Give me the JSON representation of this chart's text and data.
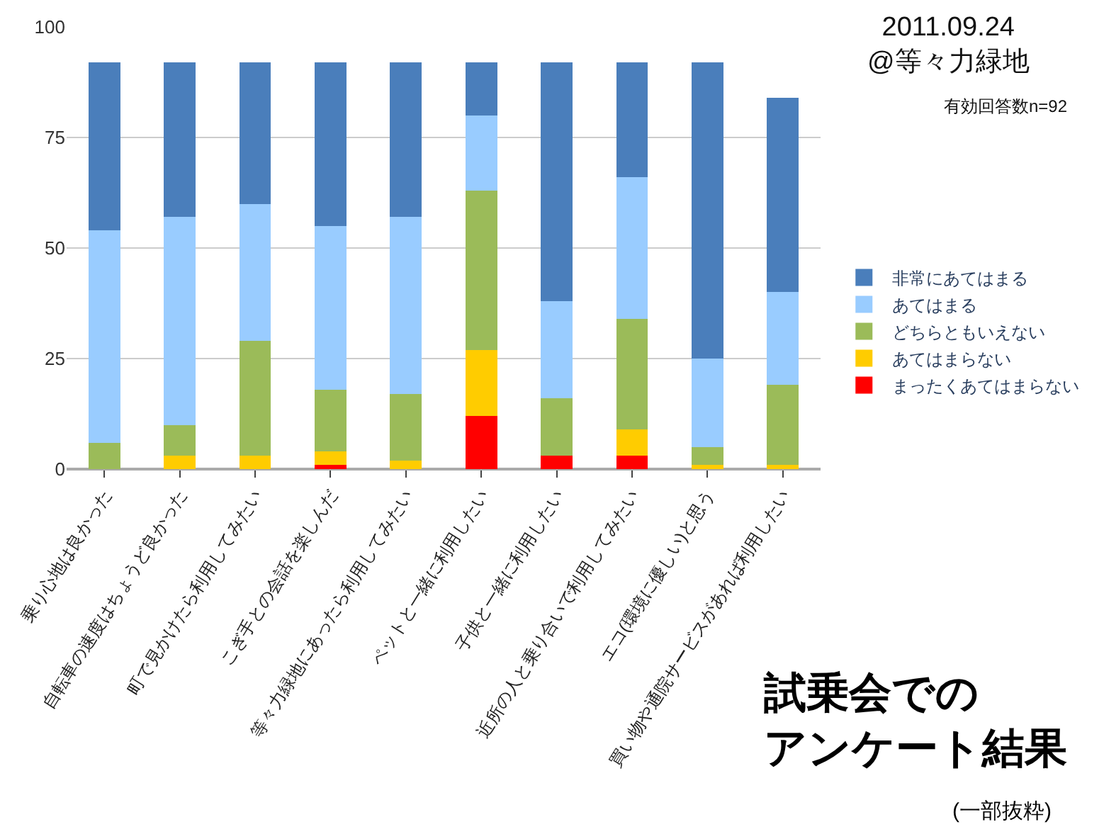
{
  "chart_data": {
    "type": "bar",
    "stacked": true,
    "title": "試乗会でのアンケート結果",
    "subtitle": "(一部抜粋)",
    "annotations": [
      "2011.09.24\n@等々力緑地",
      "有効回答数n=92"
    ],
    "categories": [
      "乗り心地は良かった",
      "自転車の速度はちょうど良かった",
      "町で見かけたら利用してみたい",
      "こぎ手との会話を楽しんだ",
      "等々力緑地にあったら利用してみたい",
      "ペットと一緒に利用したい",
      "子供と一緒に利用したい",
      "近所の人と乗り合いで利用してみたい",
      "エコ(環境に優しい)と思う",
      "買い物や通院サービスがあれば利用したい"
    ],
    "series": [
      {
        "name": "まったくあてはまらない",
        "color": "#ff0000",
        "values": [
          0,
          0,
          0,
          1,
          0,
          12,
          3,
          3,
          0,
          0
        ]
      },
      {
        "name": "あてはまらない",
        "color": "#ffcc00",
        "values": [
          0,
          3,
          3,
          3,
          2,
          15,
          0,
          6,
          1,
          1
        ]
      },
      {
        "name": "どちらともいえない",
        "color": "#9bbb59",
        "values": [
          6,
          7,
          26,
          14,
          15,
          36,
          13,
          25,
          4,
          18
        ]
      },
      {
        "name": "あてはまる",
        "color": "#99ccff",
        "values": [
          48,
          47,
          31,
          37,
          40,
          17,
          22,
          32,
          20,
          21
        ]
      },
      {
        "name": "非常にあてはまる",
        "color": "#4a7ebb",
        "values": [
          38,
          35,
          32,
          37,
          35,
          12,
          54,
          26,
          67,
          44
        ]
      }
    ],
    "ylim": [
      0,
      100
    ],
    "yticks": [
      0,
      25,
      50,
      75,
      100
    ],
    "grid": "y",
    "legend": "right"
  }
}
